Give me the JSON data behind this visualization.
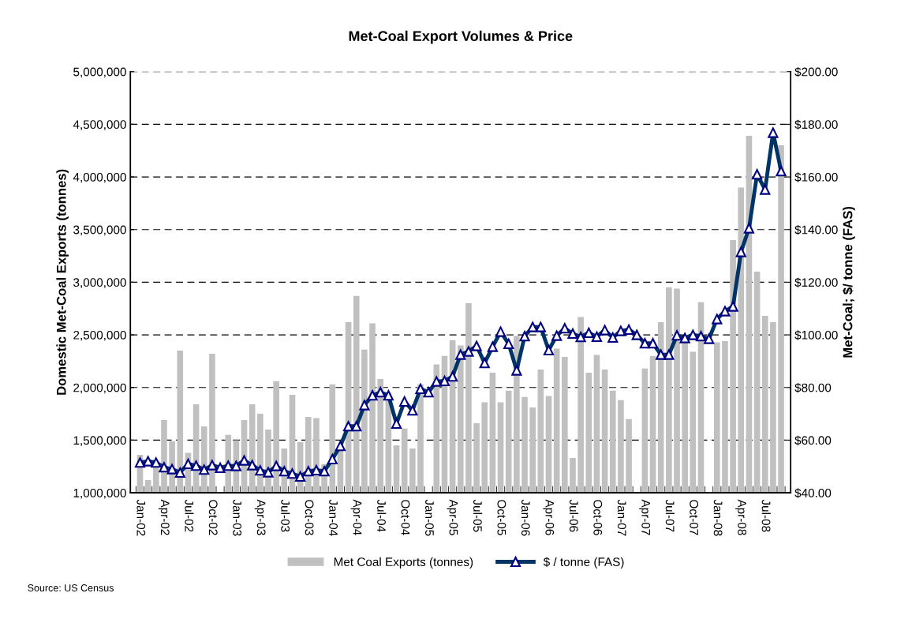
{
  "chart_data": {
    "type": "bar",
    "title": "Met-Coal Export Volumes & Price",
    "ylabel": "Domestic Met-Coal Exports (tonnes)",
    "y2label": "Met-Coal; $/ tonne (FAS)",
    "categories": [
      "Jan-02",
      null,
      null,
      "Apr-02",
      null,
      null,
      "Jul-02",
      null,
      null,
      "Oct-02",
      null,
      null,
      "Jan-03",
      null,
      null,
      "Apr-03",
      null,
      null,
      "Jul-03",
      null,
      null,
      "Oct-03",
      null,
      null,
      "Jan-04",
      null,
      null,
      "Apr-04",
      null,
      null,
      "Jul-04",
      null,
      null,
      "Oct-04",
      null,
      null,
      "Jan-05",
      null,
      null,
      "Apr-05",
      null,
      null,
      "Jul-05",
      null,
      null,
      "Oct-05",
      null,
      null,
      "Jan-06",
      null,
      null,
      "Apr-06",
      null,
      null,
      "Jul-06",
      null,
      null,
      "Oct-06",
      null,
      null,
      "Jan-07",
      null,
      null,
      "Apr-07",
      null,
      null,
      "Jul-07",
      null,
      null,
      "Oct-07",
      null,
      null,
      "Jan-08",
      null,
      null,
      "Apr-08",
      null,
      null,
      "Jul-08",
      null,
      null
    ],
    "series": [
      {
        "name": "Met Coal Exports (tonnes)",
        "color": "#c0c0c0",
        "values": [
          1360000,
          1120000,
          1300000,
          1690000,
          1490000,
          2350000,
          1380000,
          1840000,
          1630000,
          2320000,
          null,
          1550000,
          1500000,
          1690000,
          1840000,
          1750000,
          1600000,
          2060000,
          1420000,
          1930000,
          1480000,
          1720000,
          1710000,
          1270000,
          2030000,
          1400000,
          2620000,
          2870000,
          2360000,
          2610000,
          2080000,
          1950000,
          1450000,
          1610000,
          1420000,
          2030000,
          null,
          2220000,
          2300000,
          2450000,
          2400000,
          2800000,
          1660000,
          1860000,
          2140000,
          1860000,
          1970000,
          2490000,
          1910000,
          1810000,
          2170000,
          1920000,
          2370000,
          2290000,
          1330000,
          2670000,
          2140000,
          2310000,
          2170000,
          1970000,
          1880000,
          1700000,
          null,
          2180000,
          2300000,
          2620000,
          2950000,
          2940000,
          2450000,
          2340000,
          2810000,
          null,
          2430000,
          2440000,
          3400000,
          3900000,
          4390000,
          3100000,
          2680000,
          2620000,
          4300000
        ]
      },
      {
        "name": "$ / tonne (FAS)",
        "type": "line",
        "axis": "y2",
        "color": "#003366",
        "values": [
          51.5,
          52,
          51.5,
          49.7,
          49,
          47.7,
          51,
          50.3,
          48.8,
          50.5,
          49.5,
          50.3,
          50.2,
          52.3,
          50.5,
          48.5,
          47.8,
          50.2,
          48.2,
          47.3,
          46.2,
          48.2,
          48.6,
          48.2,
          52.8,
          57.8,
          65.3,
          65.3,
          73.3,
          77,
          78.2,
          77,
          66.3,
          74.7,
          71.3,
          79.5,
          78.2,
          82.3,
          82.5,
          84.2,
          92.5,
          93.7,
          95.8,
          89.3,
          95.5,
          101.2,
          96.6,
          86.5,
          99.5,
          103,
          103,
          94.2,
          99.7,
          102.5,
          100.5,
          99.2,
          100.8,
          99.3,
          101.8,
          99,
          101.5,
          102,
          100,
          96.8,
          96.8,
          92.5,
          92.5,
          99.8,
          98.8,
          100,
          99.5,
          98.5,
          106,
          109,
          110.8,
          131.5,
          140.5,
          161,
          155.2,
          176.8,
          162.2
        ]
      }
    ],
    "ylim": [
      1000000,
      5000000
    ],
    "yticks": [
      {
        "value": 1000000,
        "label": "1,000,000"
      },
      {
        "value": 1500000,
        "label": "1,500,000"
      },
      {
        "value": 2000000,
        "label": "2,000,000"
      },
      {
        "value": 2500000,
        "label": "2,500,000"
      },
      {
        "value": 3000000,
        "label": "3,000,000"
      },
      {
        "value": 3500000,
        "label": "3,500,000"
      },
      {
        "value": 4000000,
        "label": "4,000,000"
      },
      {
        "value": 4500000,
        "label": "4,500,000"
      },
      {
        "value": 5000000,
        "label": "5,000,000"
      }
    ],
    "y2lim": [
      40,
      200
    ],
    "y2ticks": [
      {
        "value": 40,
        "label": "$40.00"
      },
      {
        "value": 60,
        "label": "$60.00"
      },
      {
        "value": 80,
        "label": "$80.00"
      },
      {
        "value": 100,
        "label": "$100.00"
      },
      {
        "value": 120,
        "label": "$120.00"
      },
      {
        "value": 140,
        "label": "$140.00"
      },
      {
        "value": 160,
        "label": "$160.00"
      },
      {
        "value": 180,
        "label": "$180.00"
      },
      {
        "value": 200,
        "label": "$200.00"
      }
    ],
    "grid": "y",
    "legend": "bottom",
    "marker": "triangle",
    "line_style": "solid",
    "annotations": [
      "Source: US Census"
    ]
  }
}
